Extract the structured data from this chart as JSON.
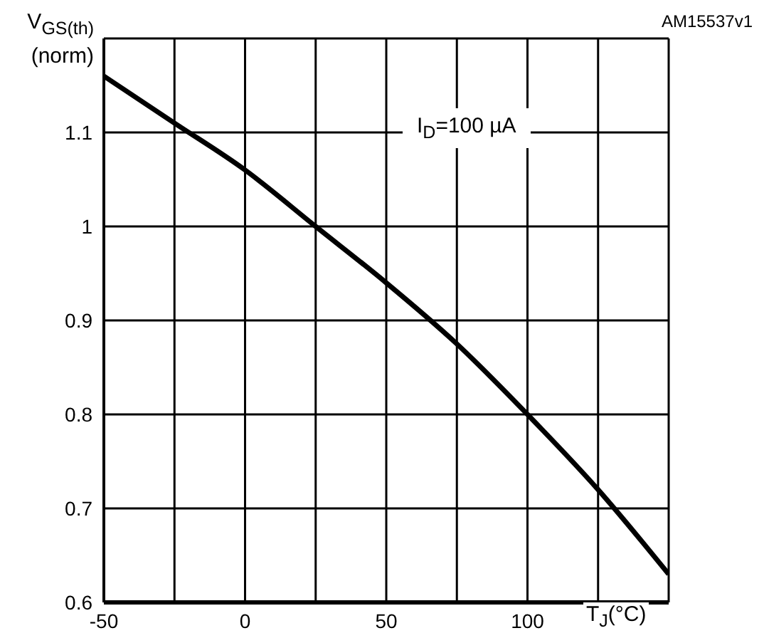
{
  "chart_data": {
    "type": "line",
    "xlabel": "T$_{J}$(°C)",
    "ylabel": "V$_{GS(th)}$\n(norm)",
    "annotations": [
      "AM15537v1",
      "I$_{D}$=100 µA"
    ],
    "x": [
      -50,
      -25,
      0,
      25,
      50,
      75,
      100,
      125,
      150
    ],
    "series": [
      {
        "color": "#000000",
        "values": [
          1.16,
          1.11,
          1.06,
          1.0,
          0.94,
          0.875,
          0.8,
          0.72,
          0.63
        ]
      }
    ],
    "xlim": [
      -50,
      150
    ],
    "xticks": [
      -50,
      {
        "value": -25,
        "label": null
      },
      0,
      {
        "value": 25,
        "label": null
      },
      50,
      {
        "value": 75,
        "label": null
      },
      100,
      {
        "value": 125,
        "label": null
      },
      {
        "value": 150,
        "label": null
      }
    ],
    "ylim": [
      0.6,
      1.2
    ],
    "yticks": [
      0.6,
      0.7,
      0.8,
      0.9,
      1,
      1.1,
      {
        "value": 1.2,
        "label": null
      }
    ],
    "grid": true,
    "marker": "none",
    "line_style": "solid"
  }
}
